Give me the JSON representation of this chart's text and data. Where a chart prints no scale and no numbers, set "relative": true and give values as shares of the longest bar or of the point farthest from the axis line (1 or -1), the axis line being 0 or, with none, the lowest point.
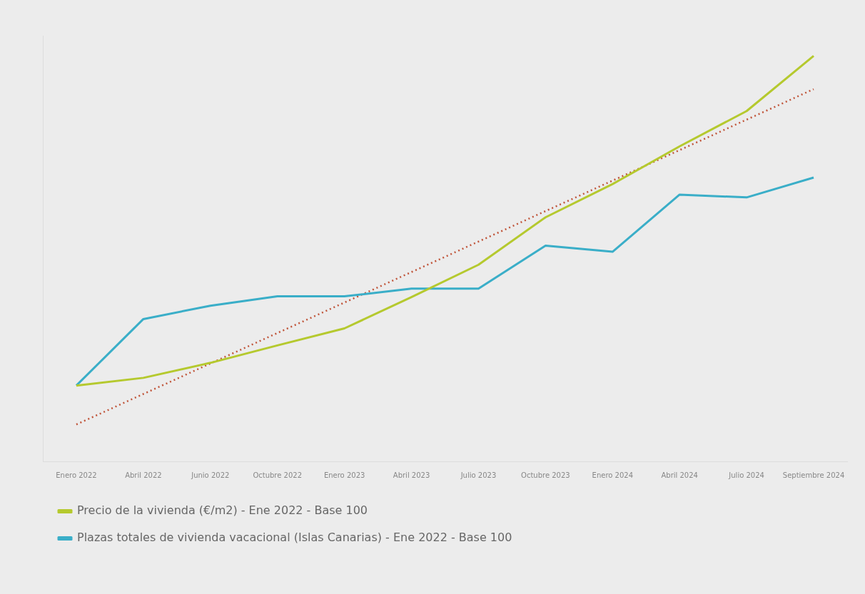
{
  "chart_data": {
    "type": "line",
    "relative": true,
    "categories": [
      "Enero 2022",
      "Abril 2022",
      "Junio 2022",
      "Octubre 2022",
      "Enero 2023",
      "Abril 2023",
      "Julio 2023",
      "Octubre 2023",
      "Enero 2024",
      "Abril 2024",
      "Julio 2024",
      "Septiembre 2024"
    ],
    "series": [
      {
        "name": "Precio de la vivienda (€/m2) - Ene 2022 - Base 100",
        "color": "#b5c92e",
        "values": [
          0.187,
          0.206,
          0.243,
          0.286,
          0.328,
          0.405,
          0.485,
          0.602,
          0.684,
          0.777,
          0.864,
          1
        ]
      },
      {
        "name": "Plazas totales de vivienda vacacional (Islas Canarias) - Ene 2022 - Base 100",
        "color": "#3aaec8",
        "values": [
          0.187,
          0.351,
          0.384,
          0.407,
          0.407,
          0.426,
          0.426,
          0.532,
          0.517,
          0.658,
          0.651,
          0.7
        ]
      },
      {
        "color": "#c0553a",
        "line_style": "dotted",
        "values": [
          0.091,
          null,
          null,
          null,
          null,
          null,
          null,
          null,
          null,
          null,
          null,
          0.918
        ]
      }
    ],
    "grid": false,
    "legend": "bottom",
    "marker": "none"
  }
}
